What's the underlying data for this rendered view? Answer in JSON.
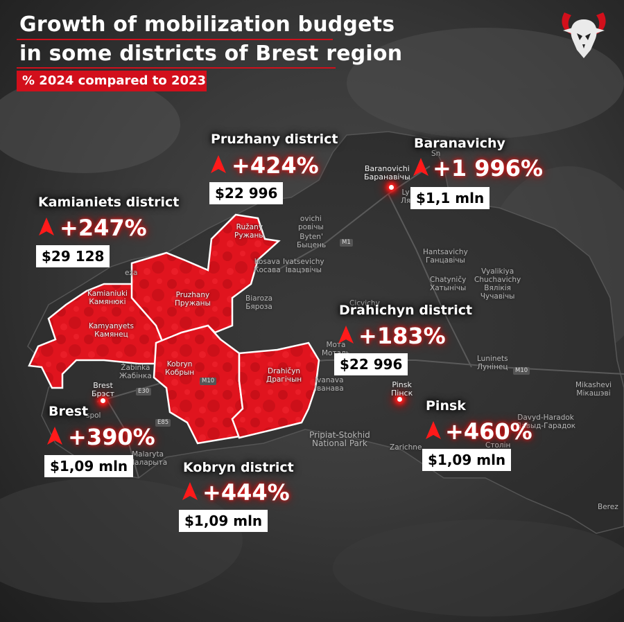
{
  "title": {
    "line1": "Growth of mobilization budgets",
    "line2": "in some districts of Brest region",
    "subtitle": "% 2024 compared to 2023"
  },
  "colors": {
    "accent_red": "#d20f1b",
    "district_fill": "#e0141e",
    "map_dark": "#2e2e2e",
    "label_box": "#ffffff"
  },
  "icons": {
    "increase": "red-up-arrow-icon",
    "logo": "horned-skull-logo"
  },
  "districts": [
    {
      "id": "pruzhany",
      "name": "Pruzhany district",
      "change": "+424%",
      "budget": "$22 996"
    },
    {
      "id": "baranavichy",
      "name": "Baranavichy",
      "change": "+1 996%",
      "budget": "$1,1 mln"
    },
    {
      "id": "kamianiets",
      "name": "Kamianiets district",
      "change": "+247%",
      "budget": "$29 128"
    },
    {
      "id": "drahichyn",
      "name": "Drahichyn district",
      "change": "+183%",
      "budget": "$22 996"
    },
    {
      "id": "brest",
      "name": "Brest",
      "change": "+390%",
      "budget": "$1,09 mln"
    },
    {
      "id": "kobryn",
      "name": "Kobryn district",
      "change": "+444%",
      "budget": "$1,09 mln"
    },
    {
      "id": "pinsk",
      "name": "Pinsk",
      "change": "+460%",
      "budget": "$1,09 mln"
    }
  ],
  "map_places": {
    "baranovichi": "Baranovichi\nБаранавічы",
    "ruzhany": "Ružany\nРужаны",
    "pruzhany": "Pruzhany\nПружаны",
    "kamyanyets": "Kamyanyets\nКамянец",
    "kamianiuki": "Kamianiuki\nКамянюкі",
    "kobryn": "Kobryn\nКобрын",
    "drahichyn": "Drahičyn\nДрагічын",
    "zhabinka": "Žabinka\nЖабінка",
    "brest": "Brest\nБрэст",
    "malaryta": "Malaryta\nМаларыта",
    "kosava": "Kosava\nКосава",
    "ivatsevichy": "Ivatsevichy\nІвацэвічы",
    "byten": "Byten'\nБыцень",
    "biaroza": "Biaroza\nБяроза",
    "hantsavichy": "Hantsavichy\nГанцавічы",
    "chatynichy": "Chatyničy\nХатынічы",
    "vyalikiya": "Vyalikiya\nChuchavichy\nВялікія\nЧучавічы",
    "luninets": "Luninets\nЛунінец",
    "ivanava": "Ivanava\nІванава",
    "pinsk": "Pinsk\nПінск",
    "mikashevichy": "Mikashevi\nМікашэві",
    "davyd": "Davyd-Haradok\nДавыд-Гарадок",
    "stolin": "Столін",
    "pripiat": "Pripiat-Stokhid\nNational Park",
    "cicvichy": "Cicvichy",
    "motal": "Мота\nМоталь",
    "ovichi": "ovichi\nровічы",
    "snov": "Sn",
    "lya": "Ly\nЛя",
    "zarichne": "Zarichne",
    "bereza": "Berez",
    "spol": "spol",
    "eza": "eza"
  },
  "roads": {
    "m1": "M1",
    "m10a": "M10",
    "m10b": "M10",
    "e30": "E30",
    "e85": "E85"
  }
}
